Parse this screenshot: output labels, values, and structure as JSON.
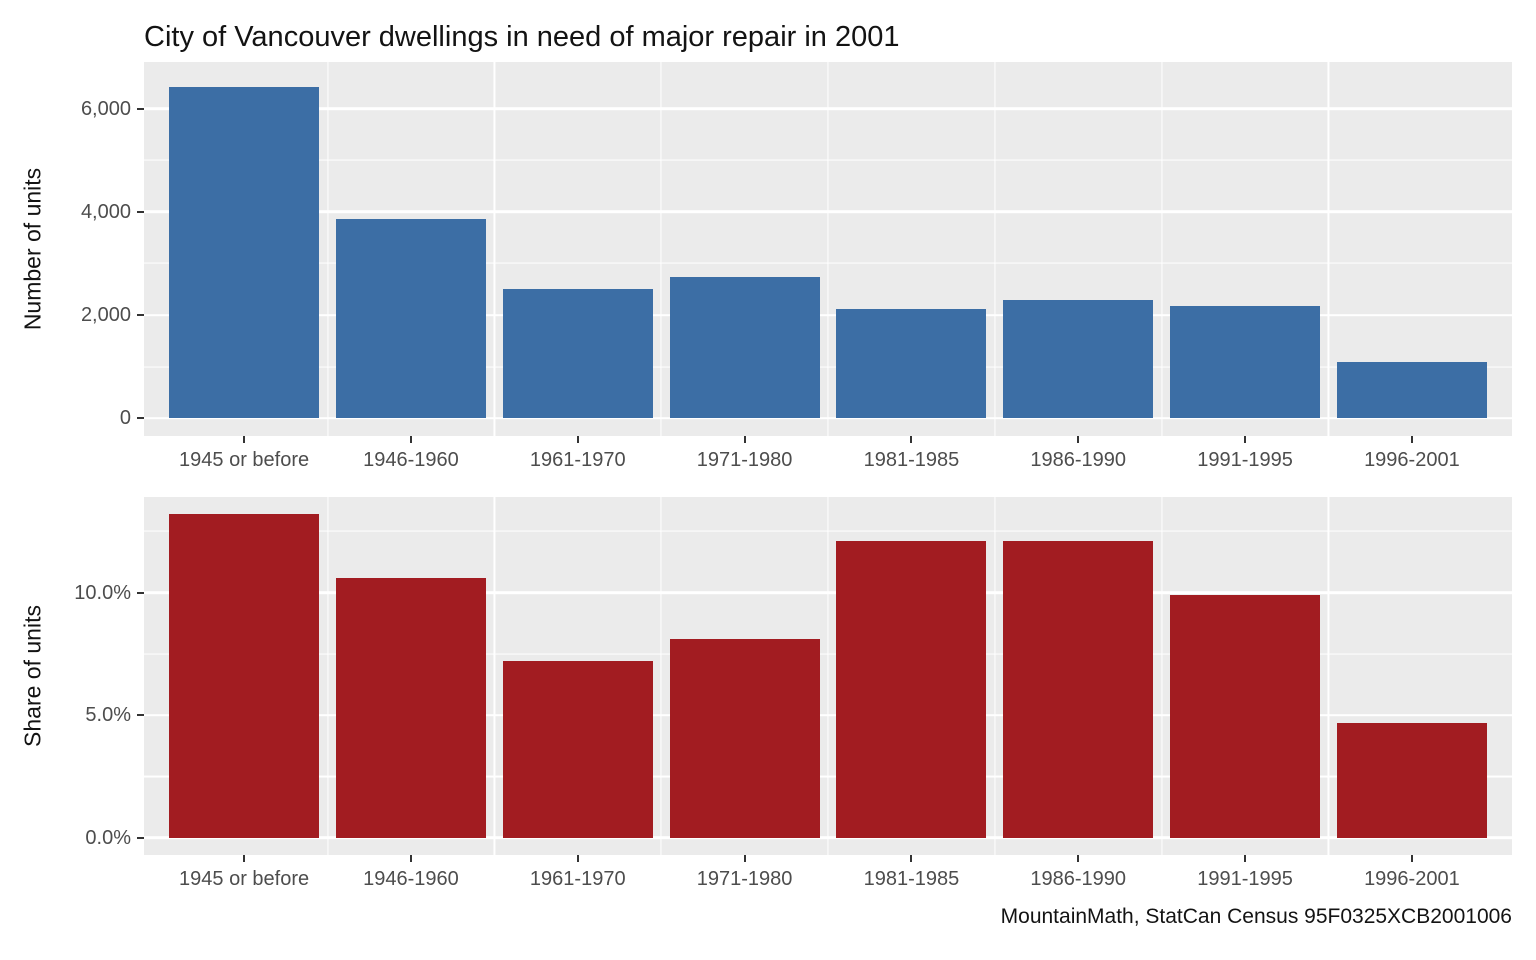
{
  "title": "City of Vancouver dwellings in need of major repair in 2001",
  "caption": "MountainMath, StatCan Census 95F0325XCB2001006",
  "colors": {
    "bar_blue": "#3C6EA5",
    "bar_red": "#A21C21",
    "panel_background": "#EBEBEB",
    "gridline": "#FFFFFF",
    "axis_text": "#4D4D4D"
  },
  "chart_data": [
    {
      "type": "bar",
      "title": "City of Vancouver dwellings in need of major repair in 2001",
      "xlabel": "",
      "ylabel": "Number of units",
      "categories": [
        "1945 or before",
        "1946-1960",
        "1961-1970",
        "1971-1980",
        "1981-1985",
        "1986-1990",
        "1991-1995",
        "1996-2001"
      ],
      "values": [
        6420,
        3860,
        2500,
        2740,
        2120,
        2290,
        2180,
        1100
      ],
      "ylim": [
        -340,
        6900
      ],
      "yticks": [
        {
          "value": 0,
          "label": "0"
        },
        {
          "value": 2000,
          "label": "2,000"
        },
        {
          "value": 4000,
          "label": "4,000"
        },
        {
          "value": 6000,
          "label": "6,000"
        }
      ],
      "minor_ticks": [
        1000,
        3000,
        5000
      ],
      "bar_color": "#3C6EA5",
      "grid": "on",
      "legend": "none"
    },
    {
      "type": "bar",
      "title": "",
      "xlabel": "",
      "ylabel": "Share of units",
      "categories": [
        "1945 or before",
        "1946-1960",
        "1961-1970",
        "1971-1980",
        "1981-1985",
        "1986-1990",
        "1991-1995",
        "1996-2001"
      ],
      "values": [
        13.2,
        10.6,
        7.2,
        8.1,
        12.1,
        12.1,
        9.9,
        4.7
      ],
      "value_unit": "percent",
      "ylim": [
        -0.7,
        13.9
      ],
      "yticks": [
        {
          "value": 0,
          "label": "0.0%"
        },
        {
          "value": 5,
          "label": "5.0%"
        },
        {
          "value": 10,
          "label": "10.0%"
        }
      ],
      "minor_ticks": [
        2.5,
        7.5,
        12.5
      ],
      "bar_color": "#A21C21",
      "grid": "on",
      "legend": "none"
    }
  ]
}
